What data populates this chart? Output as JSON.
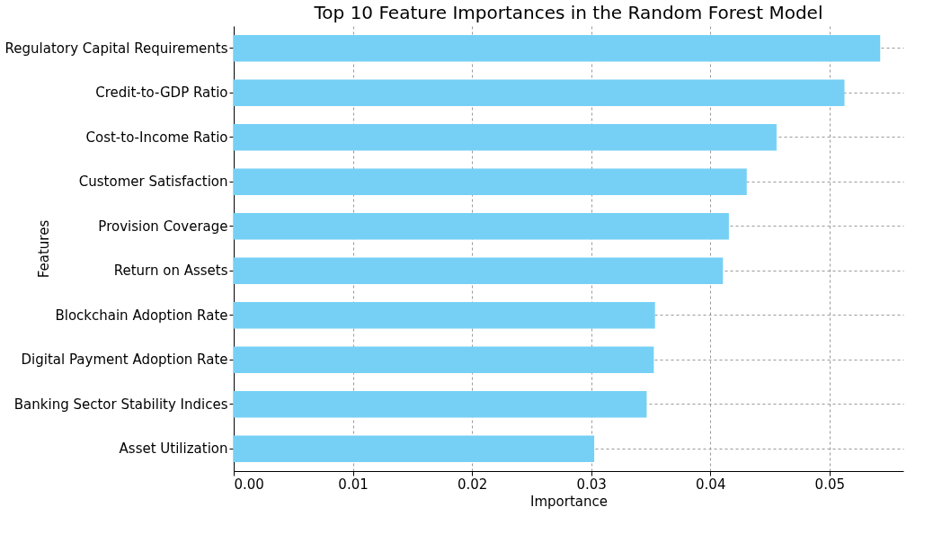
{
  "chart_data": {
    "type": "bar",
    "orientation": "horizontal",
    "title": "Top 10 Feature Importances in the Random Forest Model",
    "xlabel": "Importance",
    "ylabel": "Features",
    "categories": [
      "Regulatory Capital Requirements",
      "Credit-to-GDP Ratio",
      "Cost-to-Income Ratio",
      "Customer Satisfaction",
      "Provision Coverage",
      "Return on Assets",
      "Blockchain Adoption Rate",
      "Digital Payment Adoption Rate",
      "Banking Sector Stability Indices",
      "Asset Utilization"
    ],
    "values": [
      0.0542,
      0.0512,
      0.0455,
      0.043,
      0.0415,
      0.041,
      0.0353,
      0.0352,
      0.0346,
      0.0302
    ],
    "color": "#76d0f5",
    "xlim": [
      0,
      0.0562
    ],
    "xticks": [
      {
        "value": 0,
        "label": "0.00"
      },
      {
        "value": 0.01,
        "label": "0.01"
      },
      {
        "value": 0.02,
        "label": "0.02"
      },
      {
        "value": 0.03,
        "label": "0.03"
      },
      {
        "value": 0.04,
        "label": "0.04"
      },
      {
        "value": 0.05,
        "label": "0.05"
      }
    ],
    "grid": true
  }
}
